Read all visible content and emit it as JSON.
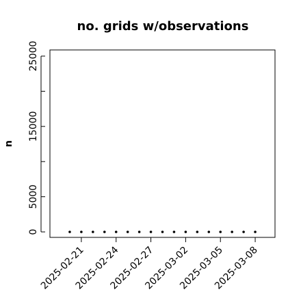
{
  "chart_data": {
    "type": "scatter",
    "title": "no. grids w/observations",
    "y_label": "n",
    "x": [
      "2025-02-20",
      "2025-02-21",
      "2025-02-22",
      "2025-02-23",
      "2025-02-24",
      "2025-02-25",
      "2025-02-26",
      "2025-02-27",
      "2025-02-28",
      "2025-03-01",
      "2025-03-02",
      "2025-03-03",
      "2025-03-04",
      "2025-03-05",
      "2025-03-06",
      "2025-03-07",
      "2025-03-08"
    ],
    "values": [
      0,
      0,
      0,
      0,
      0,
      0,
      0,
      0,
      0,
      0,
      0,
      0,
      0,
      0,
      0,
      0,
      0
    ],
    "color": "#000000",
    "xlim": [
      "2025-02-18T07:00",
      "2025-03-09T17:00"
    ],
    "xticks": [
      "2025-02-21",
      "2025-02-24",
      "2025-02-27",
      "2025-03-02",
      "2025-03-05",
      "2025-03-08"
    ],
    "xtick_colors": [
      "#000000",
      "#000000",
      "#228b22",
      "#000000",
      "#000000",
      "#000000"
    ],
    "ylim": [
      -778,
      25875
    ],
    "yticks": [
      0,
      5000,
      {
        "value": 10000,
        "label": null
      },
      15000,
      {
        "value": 20000,
        "label": null
      },
      25000
    ]
  }
}
